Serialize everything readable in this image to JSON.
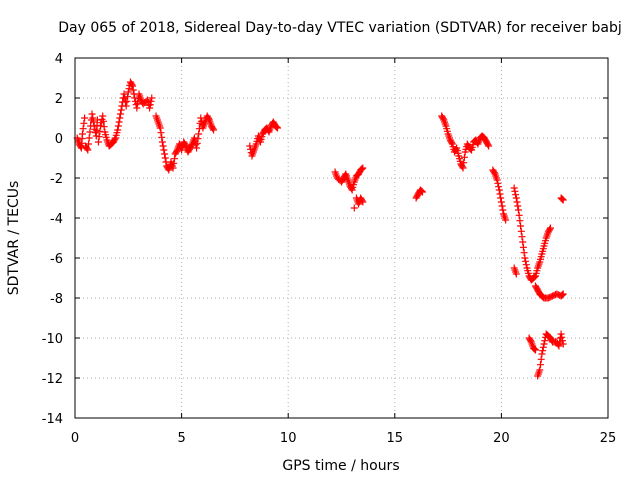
{
  "chart_data": {
    "type": "scatter",
    "title": "Day 065 of 2018, Sidereal Day-to-day VTEC variation (SDTVAR) for receiver babj",
    "xlabel": "GPS time / hours",
    "ylabel": "SDTVAR / TECUs",
    "xlim": [
      0,
      25
    ],
    "ylim": [
      -14,
      4
    ],
    "xticks": [
      0,
      5,
      10,
      15,
      20,
      25
    ],
    "yticks": [
      4,
      2,
      0,
      -2,
      -4,
      -6,
      -8,
      -10,
      -12,
      -14
    ],
    "grid": true,
    "legend": "none",
    "marker": "plus",
    "marker_color": "#ff0000",
    "series": [
      {
        "name": "SDTVAR",
        "segments": [
          [
            [
              0.1,
              0.0
            ],
            [
              0.2,
              -0.3
            ],
            [
              0.3,
              -0.5
            ],
            [
              0.35,
              0.2
            ],
            [
              0.45,
              1.0
            ],
            [
              0.5,
              -0.4
            ],
            [
              0.6,
              -0.6
            ],
            [
              0.7,
              0.3
            ],
            [
              0.8,
              1.2
            ],
            [
              0.9,
              0.6
            ],
            [
              1.0,
              0.1
            ],
            [
              1.05,
              0.9
            ],
            [
              1.1,
              -0.2
            ],
            [
              1.2,
              0.6
            ],
            [
              1.3,
              1.1
            ],
            [
              1.4,
              0.3
            ],
            [
              1.5,
              -0.1
            ],
            [
              1.6,
              -0.4
            ],
            [
              1.7,
              -0.3
            ],
            [
              1.8,
              -0.2
            ],
            [
              1.9,
              0.0
            ],
            [
              2.0,
              0.4
            ],
            [
              2.1,
              1.0
            ],
            [
              2.2,
              1.6
            ],
            [
              2.3,
              2.2
            ],
            [
              2.4,
              1.6
            ],
            [
              2.5,
              2.3
            ],
            [
              2.6,
              2.8
            ],
            [
              2.7,
              2.6
            ],
            [
              2.8,
              2.0
            ],
            [
              2.9,
              1.5
            ],
            [
              3.0,
              2.2
            ],
            [
              3.1,
              1.9
            ],
            [
              3.2,
              1.7
            ],
            [
              3.4,
              1.9
            ],
            [
              3.5,
              1.5
            ],
            [
              3.6,
              2.0
            ]
          ],
          [
            [
              3.8,
              1.1
            ],
            [
              3.9,
              0.8
            ],
            [
              4.0,
              0.5
            ],
            [
              4.1,
              -0.2
            ],
            [
              4.2,
              -0.8
            ],
            [
              4.3,
              -1.4
            ],
            [
              4.4,
              -1.6
            ],
            [
              4.5,
              -1.2
            ],
            [
              4.6,
              -1.5
            ],
            [
              4.7,
              -0.8
            ],
            [
              4.8,
              -0.6
            ],
            [
              4.9,
              -0.3
            ],
            [
              5.0,
              -0.6
            ],
            [
              5.1,
              -0.2
            ],
            [
              5.2,
              -0.4
            ],
            [
              5.3,
              -0.7
            ],
            [
              5.4,
              -0.5
            ],
            [
              5.5,
              -0.3
            ],
            [
              5.6,
              0.0
            ],
            [
              5.7,
              -0.5
            ],
            [
              5.8,
              0.2
            ],
            [
              5.9,
              1.0
            ],
            [
              6.0,
              0.5
            ],
            [
              6.1,
              0.8
            ],
            [
              6.2,
              1.1
            ],
            [
              6.3,
              0.9
            ],
            [
              6.4,
              0.6
            ],
            [
              6.5,
              0.4
            ]
          ],
          [
            [
              8.2,
              -0.4
            ],
            [
              8.3,
              -0.9
            ],
            [
              8.4,
              -0.6
            ],
            [
              8.5,
              -0.3
            ],
            [
              8.6,
              0.1
            ],
            [
              8.7,
              -0.2
            ],
            [
              8.8,
              0.2
            ],
            [
              8.9,
              0.4
            ],
            [
              9.0,
              0.5
            ],
            [
              9.1,
              0.3
            ],
            [
              9.2,
              0.6
            ],
            [
              9.3,
              0.8
            ],
            [
              9.4,
              0.6
            ],
            [
              9.5,
              0.5
            ]
          ],
          [
            [
              12.2,
              -1.7
            ],
            [
              12.3,
              -2.0
            ],
            [
              12.5,
              -2.2
            ],
            [
              12.6,
              -2.0
            ],
            [
              12.7,
              -1.8
            ],
            [
              12.8,
              -2.1
            ],
            [
              12.9,
              -2.4
            ],
            [
              13.0,
              -2.6
            ],
            [
              13.1,
              -2.2
            ],
            [
              13.2,
              -1.9
            ],
            [
              13.3,
              -1.8
            ],
            [
              13.4,
              -1.6
            ],
            [
              13.5,
              -1.5
            ],
            [
              13.2,
              -3.0
            ],
            [
              13.3,
              -3.3
            ],
            [
              13.4,
              -3.0
            ],
            [
              13.5,
              -3.2
            ],
            [
              13.1,
              -3.5
            ]
          ],
          [
            [
              16.0,
              -3.0
            ],
            [
              16.1,
              -2.8
            ],
            [
              16.2,
              -2.6
            ],
            [
              16.3,
              -2.7
            ]
          ],
          [
            [
              17.2,
              1.1
            ],
            [
              17.3,
              0.9
            ],
            [
              17.4,
              0.6
            ],
            [
              17.5,
              0.2
            ],
            [
              17.6,
              -0.1
            ],
            [
              17.7,
              -0.3
            ],
            [
              17.8,
              -0.7
            ],
            [
              17.9,
              -0.5
            ],
            [
              18.0,
              -0.9
            ],
            [
              18.1,
              -1.3
            ],
            [
              18.2,
              -1.5
            ],
            [
              18.3,
              -0.7
            ],
            [
              18.4,
              -0.3
            ],
            [
              18.5,
              -0.5
            ],
            [
              18.6,
              -0.6
            ],
            [
              18.7,
              -0.2
            ],
            [
              18.8,
              -0.1
            ],
            [
              18.9,
              -0.3
            ],
            [
              19.0,
              0.0
            ],
            [
              19.1,
              0.1
            ],
            [
              19.2,
              0.0
            ],
            [
              19.3,
              -0.2
            ],
            [
              19.4,
              -0.4
            ]
          ],
          [
            [
              19.6,
              -1.6
            ],
            [
              19.7,
              -1.8
            ],
            [
              19.8,
              -2.1
            ],
            [
              19.9,
              -2.6
            ],
            [
              20.0,
              -3.2
            ],
            [
              20.1,
              -3.8
            ],
            [
              20.2,
              -4.1
            ]
          ],
          [
            [
              20.6,
              -2.5
            ],
            [
              20.7,
              -3.0
            ],
            [
              20.8,
              -3.6
            ],
            [
              20.9,
              -4.4
            ],
            [
              21.0,
              -5.2
            ],
            [
              21.1,
              -6.0
            ],
            [
              21.2,
              -6.5
            ],
            [
              21.3,
              -6.9
            ],
            [
              21.4,
              -7.1
            ],
            [
              21.5,
              -7.0
            ],
            [
              21.6,
              -6.9
            ],
            [
              21.7,
              -6.5
            ],
            [
              21.8,
              -6.2
            ],
            [
              21.9,
              -5.8
            ],
            [
              22.0,
              -5.4
            ],
            [
              22.1,
              -5.0
            ],
            [
              22.2,
              -4.7
            ],
            [
              22.3,
              -4.5
            ],
            [
              21.6,
              -7.4
            ],
            [
              21.7,
              -7.6
            ],
            [
              21.8,
              -7.8
            ],
            [
              21.9,
              -7.9
            ],
            [
              22.0,
              -8.0
            ],
            [
              22.2,
              -8.0
            ],
            [
              22.4,
              -7.9
            ],
            [
              22.6,
              -7.8
            ],
            [
              22.8,
              -7.9
            ],
            [
              22.9,
              -7.8
            ],
            [
              20.6,
              -6.5
            ],
            [
              20.7,
              -6.8
            ]
          ],
          [
            [
              21.3,
              -10.0
            ],
            [
              21.4,
              -10.2
            ],
            [
              21.5,
              -10.5
            ],
            [
              21.6,
              -10.6
            ],
            [
              21.7,
              -11.9
            ],
            [
              21.8,
              -11.6
            ],
            [
              21.9,
              -10.8
            ],
            [
              22.0,
              -10.3
            ],
            [
              22.1,
              -9.8
            ],
            [
              22.2,
              -9.9
            ],
            [
              22.3,
              -10.0
            ],
            [
              22.4,
              -10.2
            ],
            [
              22.6,
              -10.2
            ],
            [
              22.7,
              -10.4
            ],
            [
              22.8,
              -9.8
            ],
            [
              22.9,
              -10.3
            ]
          ],
          [
            [
              22.8,
              -3.0
            ],
            [
              22.9,
              -3.1
            ]
          ]
        ]
      }
    ]
  }
}
